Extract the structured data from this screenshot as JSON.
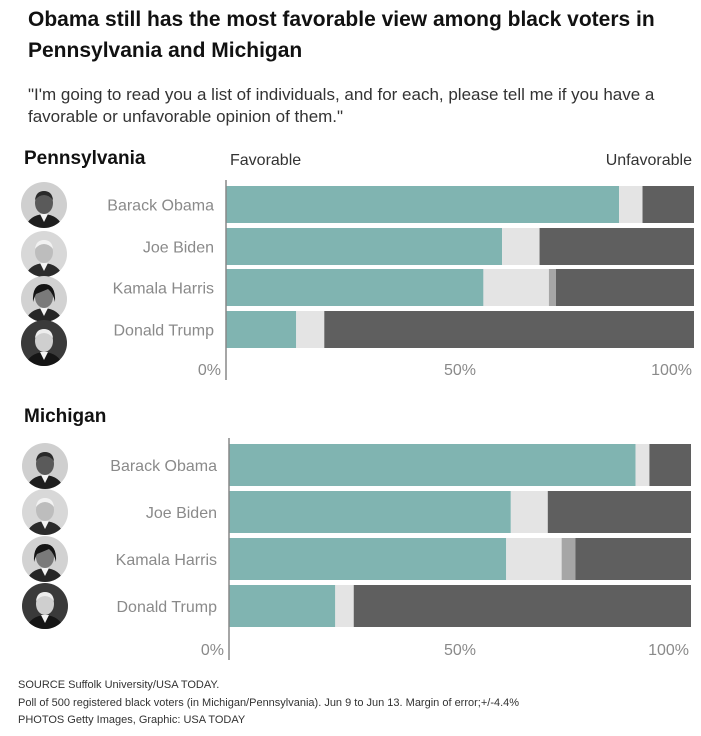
{
  "title": "Obama still has the most favorable view among black voters in Pennsylvania and Michigan",
  "subtitle": "\"I'm going to read you a list of individuals, and for each, please tell me if you have a favorable or unfavorable opinion of them.\"",
  "favorable_label": "Favorable",
  "unfavorable_label": "Unfavorable",
  "colors": {
    "favorable": "#80b4b1",
    "undecided": "#e4e4e4",
    "never_heard": "#a6a6a6",
    "unfavorable": "#5f5f5f"
  },
  "chart_data": [
    {
      "type": "bar",
      "stacked": true,
      "orientation": "horizontal",
      "title": "Pennsylvania",
      "categories": [
        "Barack Obama",
        "Joe Biden",
        "Kamala Harris",
        "Donald Trump"
      ],
      "xlim": [
        0,
        100
      ],
      "x_ticks": [
        "0%",
        "50%",
        "100%"
      ],
      "series": [
        {
          "values": [
            84,
            59,
            55,
            15
          ],
          "color": "#80b4b1"
        },
        {
          "values": [
            5,
            8,
            14,
            6
          ],
          "color": "#e4e4e4"
        },
        {
          "values": [
            0,
            0,
            1.5,
            0
          ],
          "color": "#a6a6a6"
        },
        {
          "values": [
            11,
            33,
            29.5,
            79
          ],
          "color": "#5f5f5f"
        }
      ]
    },
    {
      "type": "bar",
      "stacked": true,
      "orientation": "horizontal",
      "title": "Michigan",
      "categories": [
        "Barack Obama",
        "Joe Biden",
        "Kamala Harris",
        "Donald Trump"
      ],
      "xlim": [
        0,
        100
      ],
      "x_ticks": [
        "0%",
        "50%",
        "100%"
      ],
      "series": [
        {
          "values": [
            88,
            61,
            60,
            23
          ],
          "color": "#80b4b1"
        },
        {
          "values": [
            3,
            8,
            12,
            4
          ],
          "color": "#e4e4e4"
        },
        {
          "values": [
            0,
            0,
            3,
            0
          ],
          "color": "#a6a6a6"
        },
        {
          "values": [
            9,
            31,
            25,
            73
          ],
          "color": "#5f5f5f"
        }
      ]
    }
  ],
  "footer": {
    "source": "SOURCE Suffolk University/USA TODAY.",
    "poll_note": "Poll of 500  registered black voters (in Michigan/Pennsylvania). Jun 9 to Jun 13. Margin of error;+/-4.4%",
    "photos": "PHOTOS Getty Images, Graphic: USA TODAY"
  }
}
